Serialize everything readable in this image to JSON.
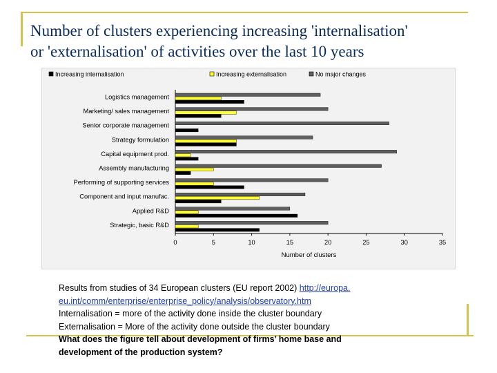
{
  "slide": {
    "title_line1": "Number of clusters experiencing increasing 'internalisation'",
    "title_line2": "or 'externalisation' of activities over the last 10 years"
  },
  "colors": {
    "title": "#0a2c5a",
    "decor": "#d4c24a",
    "link": "#1f3fb0"
  },
  "notes": {
    "source_prefix": "Results from studies of 34 European clusters (EU report 2002) ",
    "source_link_1": "http://europa.",
    "source_link_2": "eu.int/comm/enterprise/enterprise_policy/analysis/observatory.htm",
    "internalisation_def": "Internalisation = more of the activity done inside the cluster boundary",
    "externalisation_def": "Externalisation = More of the activity done outside the cluster boundary",
    "question_1": "What does the figure tell about development of firms’ home base and",
    "question_2": "development of the production system?"
  },
  "chart_data": {
    "type": "bar",
    "orientation": "horizontal",
    "title": "",
    "xlabel": "Number of clusters",
    "ylabel": "",
    "xlim": [
      0,
      35
    ],
    "xticks": [
      0,
      5,
      10,
      15,
      20,
      25,
      30,
      35
    ],
    "grid": false,
    "legend_position": "top",
    "categories": [
      "Logistics management",
      "Marketing/ sales management",
      "Senior corporate management",
      "Strategy formulation",
      "Capital equipment prod.",
      "Assembly manufacturing",
      "Performing of supporting services",
      "Component and input manufac.",
      "Applied R&D",
      "Strategic, basic R&D"
    ],
    "series": [
      {
        "name": "Increasing internalisation",
        "color": "#000000",
        "values": [
          9,
          6,
          3,
          8,
          3,
          2,
          9,
          6,
          16,
          11
        ]
      },
      {
        "name": "Increasing externalisation",
        "color": "#ffff33",
        "values": [
          6,
          8,
          0,
          8,
          2,
          5,
          5,
          11,
          3,
          3
        ]
      },
      {
        "name": "No major changes",
        "color": "#5f5f5f",
        "values": [
          19,
          20,
          28,
          18,
          29,
          27,
          20,
          17,
          15,
          20
        ]
      }
    ]
  }
}
